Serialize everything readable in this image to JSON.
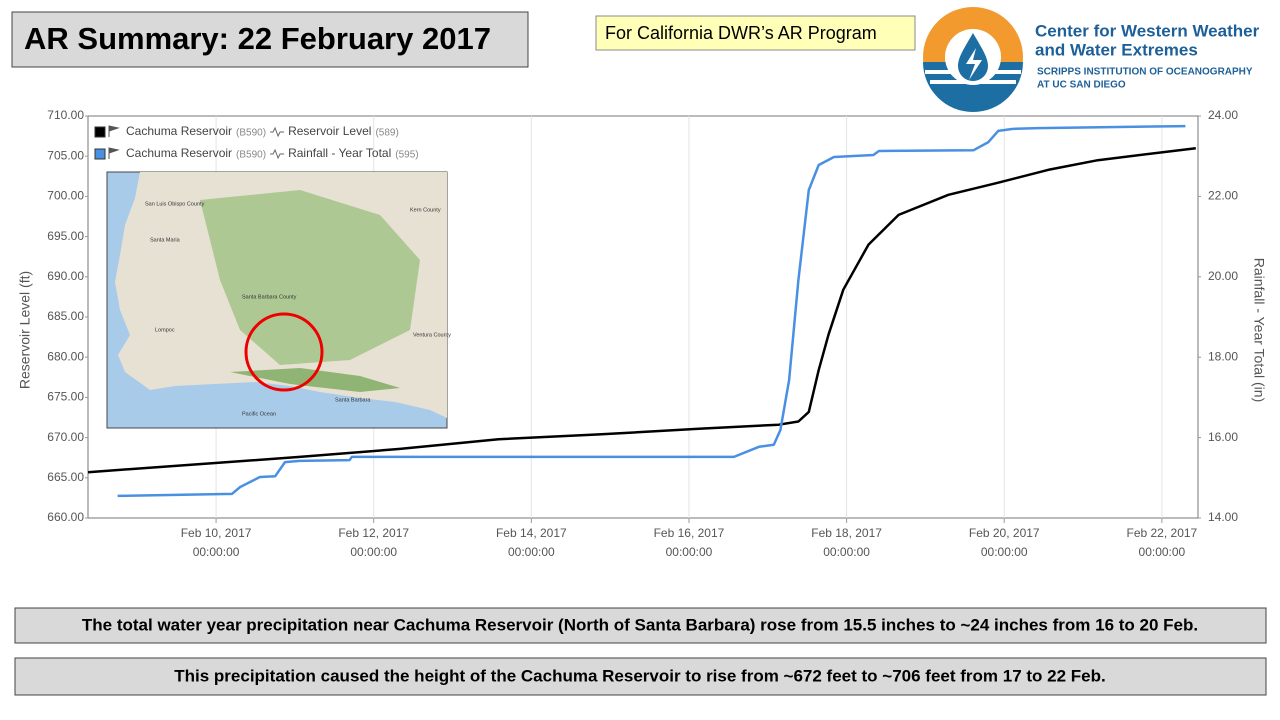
{
  "header": {
    "title": "AR Summary: 22 February 2017",
    "tag": "For California DWR’s AR Program",
    "logo": {
      "line1": "Center for Western Weather",
      "line2": "and Water Extremes",
      "line3": "SCRIPPS INSTITUTION OF OCEANOGRAPHY",
      "line4": "AT UC SAN DIEGO"
    }
  },
  "map": {
    "labels": [
      "San Luis Obispo County",
      "Kern County",
      "Santa Maria",
      "Santa Barbara County",
      "Lompoc",
      "Ventura County",
      "Santa Barbara",
      "Pacific Ocean"
    ]
  },
  "chart_data": {
    "type": "line",
    "y_label": "Reservoir Level (ft)",
    "y2_label": "Rainfall - Year Total (in)",
    "xlim": [
      "2017-02-08T09:00",
      "2017-02-22T11:00"
    ],
    "xticks": [
      {
        "value": "2017-02-10T00:00",
        "label": [
          "Feb 10, 2017",
          "00:00:00"
        ]
      },
      {
        "value": "2017-02-12T00:00",
        "label": [
          "Feb 12, 2017",
          "00:00:00"
        ]
      },
      {
        "value": "2017-02-14T00:00",
        "label": [
          "Feb 14, 2017",
          "00:00:00"
        ]
      },
      {
        "value": "2017-02-16T00:00",
        "label": [
          "Feb 16, 2017",
          "00:00:00"
        ]
      },
      {
        "value": "2017-02-18T00:00",
        "label": [
          "Feb 18, 2017",
          "00:00:00"
        ]
      },
      {
        "value": "2017-02-20T00:00",
        "label": [
          "Feb 20, 2017",
          "00:00:00"
        ]
      },
      {
        "value": "2017-02-22T00:00",
        "label": [
          "Feb 22, 2017",
          "00:00:00"
        ]
      }
    ],
    "xgrid": true,
    "ylim": [
      660,
      710
    ],
    "yticks": [
      {
        "value": 660,
        "label": "660.00"
      },
      {
        "value": 665,
        "label": "665.00"
      },
      {
        "value": 670,
        "label": "670.00"
      },
      {
        "value": 675,
        "label": "675.00"
      },
      {
        "value": 680,
        "label": "680.00"
      },
      {
        "value": 685,
        "label": "685.00"
      },
      {
        "value": 690,
        "label": "690.00"
      },
      {
        "value": 695,
        "label": "695.00"
      },
      {
        "value": 700,
        "label": "700.00"
      },
      {
        "value": 705,
        "label": "705.00"
      },
      {
        "value": 710,
        "label": "710.00"
      }
    ],
    "y2lim": [
      14,
      24
    ],
    "y2ticks": [
      {
        "value": 14,
        "label": "14.00"
      },
      {
        "value": 16,
        "label": "16.00"
      },
      {
        "value": 18,
        "label": "18.00"
      },
      {
        "value": 20,
        "label": "20.00"
      },
      {
        "value": 22,
        "label": "22.00"
      },
      {
        "value": 24,
        "label": "24.00"
      }
    ],
    "series": [
      {
        "station": "Cachuma Reservoir",
        "station_id": "(B590)",
        "name": "Reservoir Level",
        "sensor_id": "(589)",
        "color": "#000000",
        "x": [
          "2017-02-08T09:00",
          "2017-02-09T19:00",
          "2017-02-11T01:30",
          "2017-02-12T08:00",
          "2017-02-13T14:00",
          "2017-02-14T20:40",
          "2017-02-16T03:00",
          "2017-02-17T03:20",
          "2017-02-17T09:20",
          "2017-02-17T12:30",
          "2017-02-17T15:30",
          "2017-02-17T18:30",
          "2017-02-17T23:00",
          "2017-02-18T06:40",
          "2017-02-18T15:50",
          "2017-02-19T07:00",
          "2017-02-19T22:10",
          "2017-02-20T13:20",
          "2017-02-21T04:30",
          "2017-02-22T10:20"
        ],
        "values": [
          665.7,
          666.7,
          667.6,
          668.6,
          669.8,
          670.4,
          671.1,
          671.6,
          672,
          673.2,
          678.4,
          682.8,
          688.4,
          694,
          697.7,
          700.2,
          701.7,
          703.3,
          704.5,
          706
        ]
      },
      {
        "station": "Cachuma Reservoir",
        "station_id": "(B590)",
        "name": "Rainfall - Year Total",
        "sensor_id": "(595)",
        "color": "#4a90e2",
        "axis": "y2",
        "x": [
          "2017-02-08T18:00",
          "2017-02-10T04:50",
          "2017-02-10T07:20",
          "2017-02-10T13:20",
          "2017-02-10T18:00",
          "2017-02-10T21:00",
          "2017-02-11T01:30",
          "2017-02-11T16:40",
          "2017-02-11T17:20",
          "2017-02-14T20:40",
          "2017-02-16T13:40",
          "2017-02-16T21:20",
          "2017-02-17T01:50",
          "2017-02-17T03:50",
          "2017-02-17T06:30",
          "2017-02-17T09:20",
          "2017-02-17T12:30",
          "2017-02-17T15:30",
          "2017-02-17T20:10",
          "2017-02-18T08:10",
          "2017-02-18T09:50",
          "2017-02-19T14:40",
          "2017-02-19T19:10",
          "2017-02-19T22:10",
          "2017-02-20T02:40",
          "2017-02-20T10:20",
          "2017-02-22T07:10"
        ],
        "values": [
          14.55,
          14.6,
          14.77,
          15.02,
          15.04,
          15.39,
          15.42,
          15.44,
          15.52,
          15.52,
          15.52,
          15.77,
          15.82,
          16.19,
          17.43,
          19.92,
          22.16,
          22.78,
          22.98,
          23.03,
          23.13,
          23.15,
          23.35,
          23.63,
          23.68,
          23.7,
          23.75
        ]
      }
    ]
  },
  "notes": [
    "The total water year precipitation  near Cachuma Reservoir (North of Santa Barbara) rose from 15.5 inches to ~24 inches from 16 to 20 Feb.",
    "This precipitation  caused the height of the Cachuma Reservoir to rise from ~672 feet to ~706 feet from 17 to 22 Feb."
  ]
}
